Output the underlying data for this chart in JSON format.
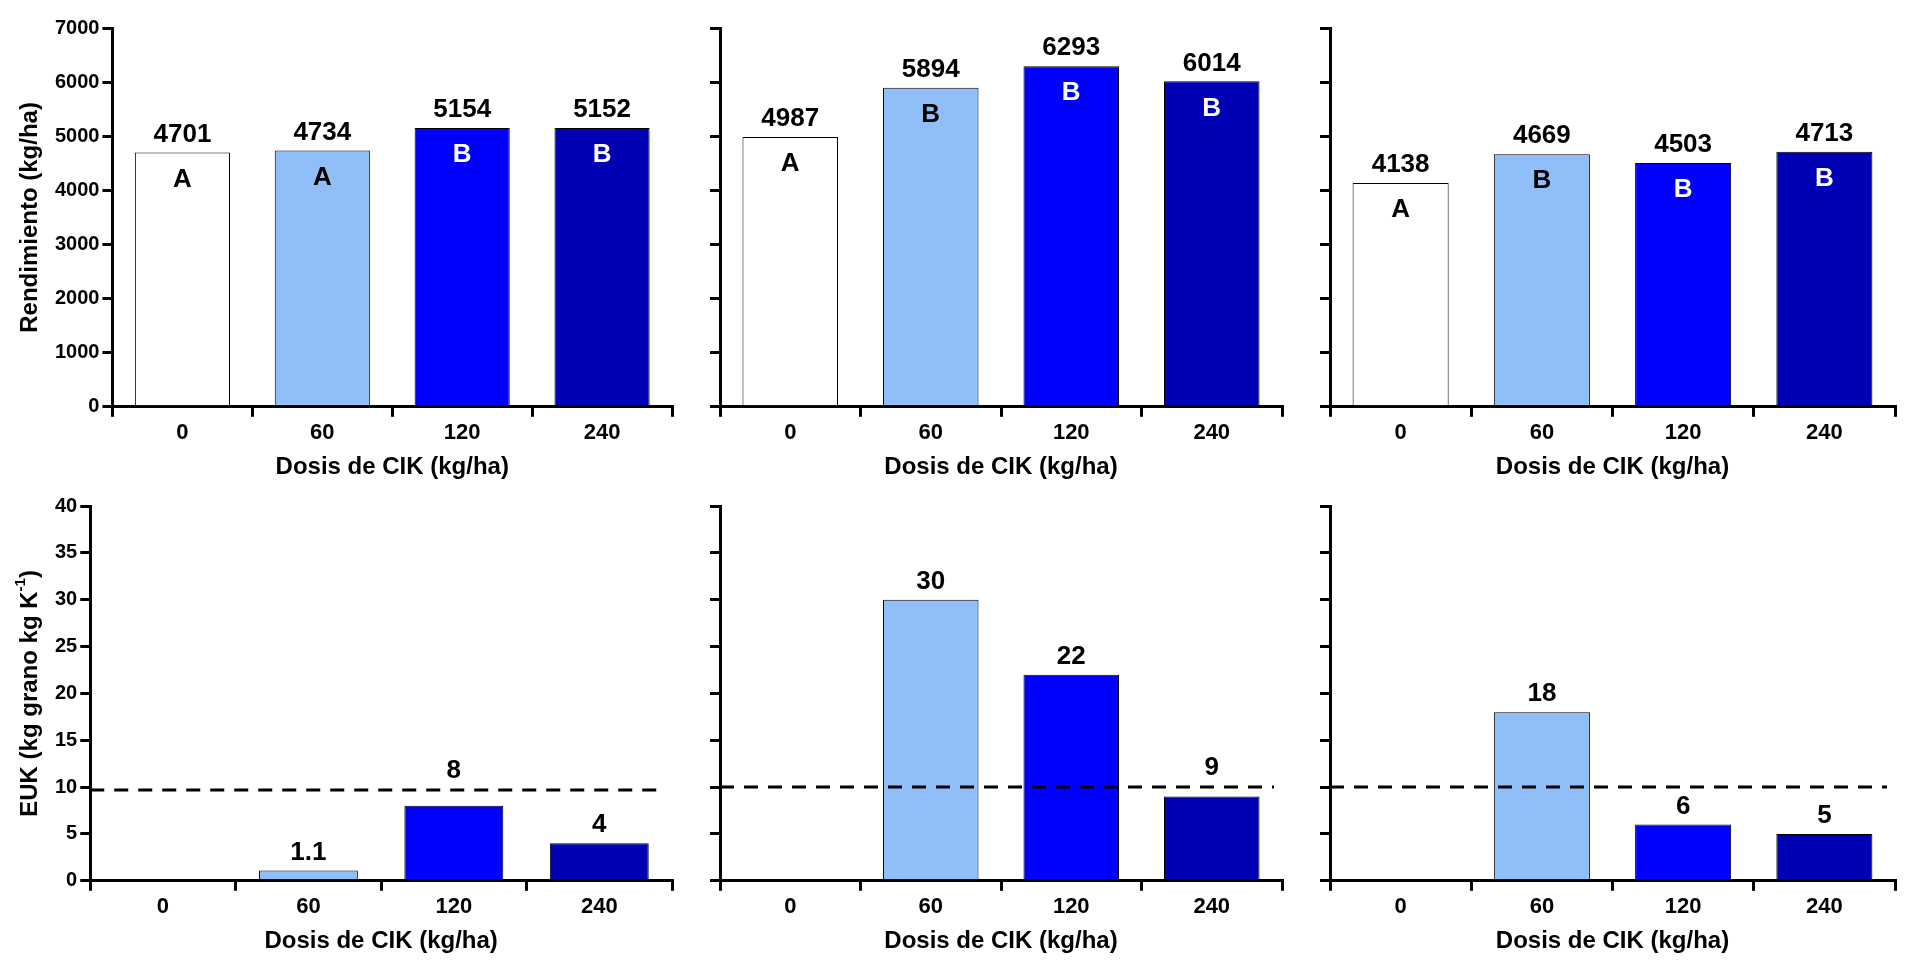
{
  "chart_data": [
    {
      "type": "bar",
      "categories": [
        "0",
        "60",
        "120",
        "240"
      ],
      "values": [
        4701,
        4734,
        5154,
        5152
      ],
      "colors": [
        "#ffffff",
        "#90bef8",
        "#0000ff",
        "#0000b4"
      ],
      "ylabel": "Rendimiento (kg/ha)",
      "xlabel": "Dosis de CIK (kg/ha)",
      "ylim": [
        0,
        7000
      ],
      "yticks": [
        0,
        1000,
        2000,
        3000,
        4000,
        5000,
        6000,
        7000
      ],
      "data_labels": true,
      "legend": false,
      "grid": false,
      "annotations": [
        "A",
        "A",
        "B",
        "B"
      ]
    },
    {
      "type": "bar",
      "categories": [
        "0",
        "60",
        "120",
        "240"
      ],
      "values": [
        4987,
        5894,
        6293,
        6014
      ],
      "colors": [
        "#ffffff",
        "#90bef8",
        "#0000ff",
        "#0000b4"
      ],
      "xlabel": "Dosis de CIK (kg/ha)",
      "ylim": [
        0,
        7000
      ],
      "yticks": [
        {
          "value": 0,
          "label": null
        },
        {
          "value": 1000,
          "label": null
        },
        {
          "value": 2000,
          "label": null
        },
        {
          "value": 3000,
          "label": null
        },
        {
          "value": 4000,
          "label": null
        },
        {
          "value": 5000,
          "label": null
        },
        {
          "value": 6000,
          "label": null
        },
        {
          "value": 7000,
          "label": null
        }
      ],
      "tick_labels": "x",
      "data_labels": true,
      "legend": false,
      "grid": false,
      "annotations": [
        "A",
        "B",
        "B",
        "B"
      ]
    },
    {
      "type": "bar",
      "categories": [
        "0",
        "60",
        "120",
        "240"
      ],
      "values": [
        4138,
        4669,
        4503,
        4713
      ],
      "colors": [
        "#ffffff",
        "#90bef8",
        "#0000ff",
        "#0000b4"
      ],
      "xlabel": "Dosis de CIK (kg/ha)",
      "ylim": [
        0,
        7000
      ],
      "yticks": [
        {
          "value": 0,
          "label": null
        },
        {
          "value": 1000,
          "label": null
        },
        {
          "value": 2000,
          "label": null
        },
        {
          "value": 3000,
          "label": null
        },
        {
          "value": 4000,
          "label": null
        },
        {
          "value": 5000,
          "label": null
        },
        {
          "value": 6000,
          "label": null
        },
        {
          "value": 7000,
          "label": null
        }
      ],
      "tick_labels": "x",
      "data_labels": true,
      "legend": false,
      "grid": false,
      "annotations": [
        "A",
        "B",
        "B",
        "B"
      ]
    },
    {
      "type": "bar",
      "categories": [
        "0",
        "60",
        "120",
        "240"
      ],
      "values": [
        0,
        1.1,
        8,
        4
      ],
      "value_labels": [
        null,
        "1.1",
        "8",
        "4"
      ],
      "colors": [
        "#ffffff",
        "#90bef8",
        "#0000ff",
        "#0000b4"
      ],
      "ylabel": "EUK (kg grano kg K$^{-1}$)",
      "xlabel": "Dosis de CIK (kg/ha)",
      "ylim": [
        0,
        40
      ],
      "yticks": [
        0,
        5,
        10,
        15,
        20,
        25,
        30,
        35,
        40
      ],
      "legend": false,
      "grid": false,
      "ref_lines": [
        {
          "axis": "y",
          "value": 9.7,
          "color": "#000000",
          "line_style": "dashed"
        }
      ]
    },
    {
      "type": "bar",
      "categories": [
        "0",
        "60",
        "120",
        "240"
      ],
      "values": [
        0,
        30,
        22,
        9
      ],
      "value_labels": [
        null,
        "30",
        "22",
        "9"
      ],
      "colors": [
        "#ffffff",
        "#90bef8",
        "#0000ff",
        "#0000b4"
      ],
      "xlabel": "Dosis de CIK (kg/ha)",
      "ylim": [
        0,
        40
      ],
      "yticks": [
        {
          "value": 0,
          "label": null
        },
        {
          "value": 5,
          "label": null
        },
        {
          "value": 10,
          "label": null
        },
        {
          "value": 15,
          "label": null
        },
        {
          "value": 20,
          "label": null
        },
        {
          "value": 25,
          "label": null
        },
        {
          "value": 30,
          "label": null
        },
        {
          "value": 35,
          "label": null
        },
        {
          "value": 40,
          "label": null
        }
      ],
      "tick_labels": "x",
      "legend": false,
      "grid": false,
      "ref_lines": [
        {
          "axis": "y",
          "value": 10,
          "color": "#000000",
          "line_style": "dashed"
        }
      ]
    },
    {
      "type": "bar",
      "categories": [
        "0",
        "60",
        "120",
        "240"
      ],
      "values": [
        0,
        18,
        6,
        5
      ],
      "value_labels": [
        null,
        "18",
        "6",
        "5"
      ],
      "colors": [
        "#ffffff",
        "#90bef8",
        "#0000ff",
        "#0000b4"
      ],
      "xlabel": "Dosis de CIK (kg/ha)",
      "ylim": [
        0,
        40
      ],
      "yticks": [
        {
          "value": 0,
          "label": null
        },
        {
          "value": 5,
          "label": null
        },
        {
          "value": 10,
          "label": null
        },
        {
          "value": 15,
          "label": null
        },
        {
          "value": 20,
          "label": null
        },
        {
          "value": 25,
          "label": null
        },
        {
          "value": 30,
          "label": null
        },
        {
          "value": 35,
          "label": null
        },
        {
          "value": 40,
          "label": null
        }
      ],
      "tick_labels": "x",
      "legend": false,
      "grid": false,
      "ref_lines": [
        {
          "axis": "y",
          "value": 10,
          "color": "#000000",
          "line_style": "dashed"
        }
      ]
    }
  ]
}
